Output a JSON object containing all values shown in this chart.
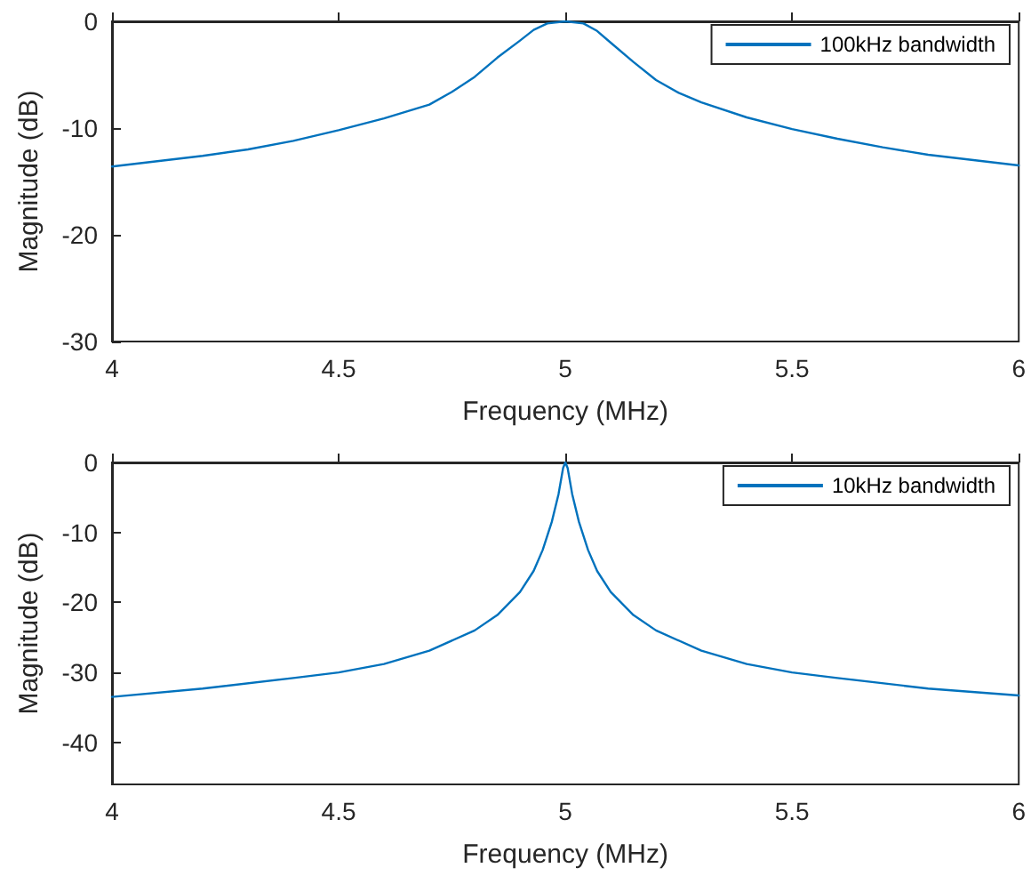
{
  "chart_data": [
    {
      "type": "line",
      "xlabel": "Frequency (MHz)",
      "ylabel": "Magnitude (dB)",
      "xlim": [
        4,
        6
      ],
      "xticks": [
        4,
        4.5,
        5,
        5.5,
        6
      ],
      "ylim": [
        -30,
        0
      ],
      "yticks": [
        -30,
        -20,
        -10,
        0
      ],
      "grid": false,
      "legend": "top right",
      "series": [
        {
          "name": "100kHz bandwidth",
          "color": "#0072bd",
          "x": [
            4.0,
            4.1,
            4.2,
            4.3,
            4.4,
            4.5,
            4.6,
            4.7,
            4.75,
            4.8,
            4.85,
            4.9,
            4.93,
            4.96,
            5.0,
            5.04,
            5.07,
            5.1,
            5.15,
            5.2,
            5.25,
            5.3,
            5.4,
            5.5,
            5.6,
            5.7,
            5.8,
            5.9,
            6.0
          ],
          "values": [
            -13.6,
            -13.1,
            -12.6,
            -12.0,
            -11.2,
            -10.2,
            -9.1,
            -7.8,
            -6.6,
            -5.2,
            -3.4,
            -1.8,
            -0.8,
            -0.2,
            0,
            -0.2,
            -0.9,
            -2.0,
            -3.8,
            -5.5,
            -6.7,
            -7.6,
            -9.0,
            -10.1,
            -11.0,
            -11.8,
            -12.5,
            -13.0,
            -13.5
          ]
        }
      ]
    },
    {
      "type": "line",
      "xlabel": "Frequency (MHz)",
      "ylabel": "Magnitude (dB)",
      "xlim": [
        4,
        6
      ],
      "xticks": [
        4,
        4.5,
        5,
        5.5,
        6
      ],
      "ylim": [
        -46,
        0
      ],
      "yticks": [
        -40,
        -30,
        -20,
        -10,
        0
      ],
      "grid": false,
      "legend": "top right",
      "series": [
        {
          "name": "10kHz bandwidth",
          "color": "#0072bd",
          "x": [
            4.0,
            4.2,
            4.4,
            4.5,
            4.6,
            4.7,
            4.8,
            4.85,
            4.9,
            4.93,
            4.95,
            4.97,
            4.985,
            4.995,
            5.0,
            5.005,
            5.015,
            5.03,
            5.05,
            5.07,
            5.1,
            5.15,
            5.2,
            5.3,
            5.4,
            5.5,
            5.6,
            5.8,
            6.0
          ],
          "values": [
            -33.5,
            -32.3,
            -30.8,
            -30.0,
            -28.8,
            -26.9,
            -24.0,
            -21.8,
            -18.5,
            -15.5,
            -12.5,
            -8.5,
            -4.5,
            -0.8,
            0,
            -0.8,
            -4.5,
            -8.5,
            -12.5,
            -15.5,
            -18.5,
            -21.8,
            -24.0,
            -26.9,
            -28.8,
            -30.0,
            -30.8,
            -32.3,
            -33.3
          ]
        }
      ]
    }
  ]
}
